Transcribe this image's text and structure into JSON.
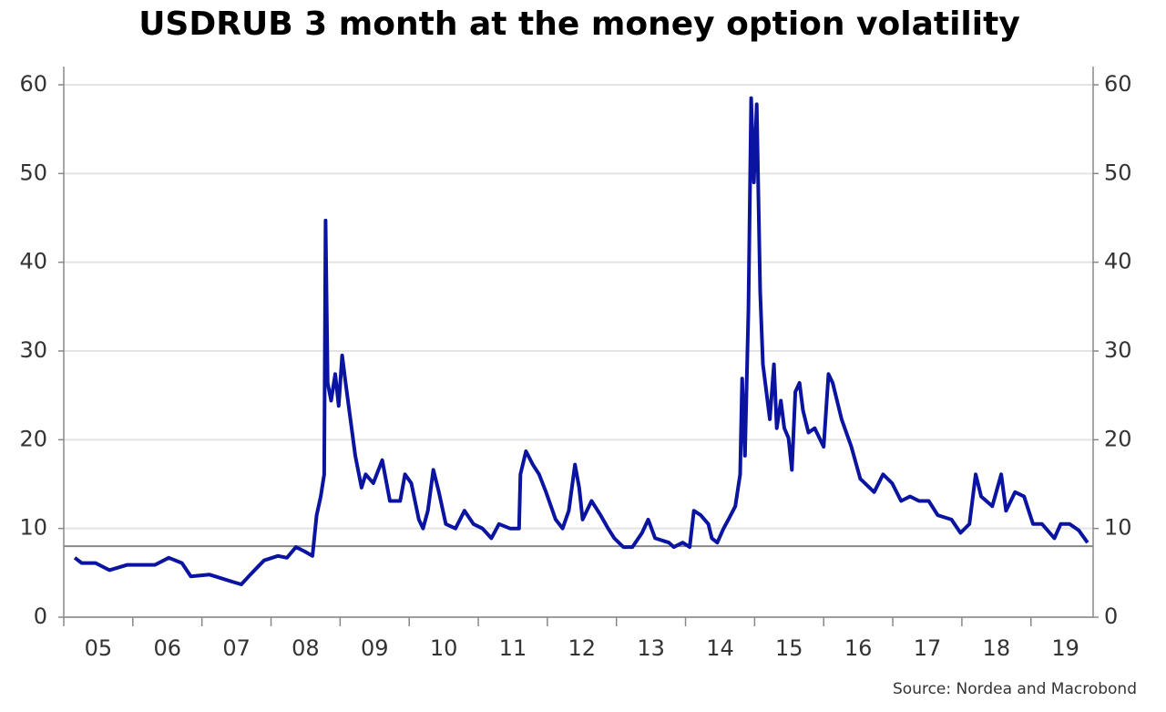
{
  "chart_data": {
    "type": "line",
    "title": "USDRUB 3 month at the money option volatility",
    "source": "Source: Nordea and Macrobond",
    "x": [
      5.16,
      5.26,
      5.46,
      5.66,
      5.92,
      6.32,
      6.52,
      6.71,
      6.84,
      7.11,
      7.44,
      7.57,
      7.7,
      7.9,
      8.1,
      8.23,
      8.36,
      8.49,
      8.6,
      8.66,
      8.72,
      8.77,
      8.79,
      8.82,
      8.87,
      8.93,
      8.98,
      9.03,
      9.08,
      9.15,
      9.22,
      9.31,
      9.37,
      9.48,
      9.61,
      9.72,
      9.87,
      9.94,
      10.03,
      10.14,
      10.2,
      10.27,
      10.35,
      10.43,
      10.53,
      10.67,
      10.8,
      10.93,
      11.06,
      11.19,
      11.3,
      11.46,
      11.59,
      11.61,
      11.69,
      11.79,
      11.88,
      11.98,
      12.12,
      12.22,
      12.31,
      12.4,
      12.46,
      12.51,
      12.64,
      12.77,
      12.88,
      12.97,
      13.1,
      13.23,
      13.37,
      13.46,
      13.56,
      13.76,
      13.83,
      13.96,
      14.06,
      14.12,
      14.22,
      14.33,
      14.38,
      14.46,
      14.55,
      14.62,
      14.72,
      14.79,
      14.82,
      14.86,
      14.91,
      14.95,
      14.99,
      15.03,
      15.08,
      15.12,
      15.17,
      15.22,
      15.28,
      15.32,
      15.38,
      15.43,
      15.49,
      15.54,
      15.59,
      15.65,
      15.7,
      15.78,
      15.87,
      16.0,
      16.07,
      16.13,
      16.26,
      16.4,
      16.53,
      16.73,
      16.86,
      16.99,
      17.12,
      17.25,
      17.38,
      17.52,
      17.65,
      17.85,
      17.98,
      18.11,
      18.2,
      18.28,
      18.44,
      18.57,
      18.64,
      18.77,
      18.9,
      19.03,
      19.16,
      19.34,
      19.43,
      19.56,
      19.69,
      19.82
    ],
    "series": [
      {
        "name": "USDRUB 3M ATM volatility",
        "color": "#0a14a0",
        "values": [
          6.7,
          6.1,
          6.1,
          5.3,
          5.9,
          5.9,
          6.7,
          6.1,
          4.6,
          4.8,
          4.0,
          3.7,
          4.8,
          6.4,
          6.9,
          6.7,
          7.9,
          7.4,
          6.9,
          11.5,
          13.6,
          16.1,
          44.7,
          26.4,
          24.4,
          27.4,
          23.8,
          29.5,
          26.4,
          22.3,
          18.2,
          14.6,
          16.1,
          15.1,
          17.7,
          13.1,
          13.1,
          16.1,
          15.1,
          11.0,
          10.0,
          12.0,
          16.6,
          14.1,
          10.5,
          10.0,
          12.0,
          10.5,
          10.0,
          8.9,
          10.5,
          10.0,
          10.0,
          16.1,
          18.7,
          17.2,
          16.1,
          14.1,
          11.0,
          10.0,
          12.0,
          17.2,
          14.6,
          11.0,
          13.1,
          11.5,
          10.0,
          8.9,
          7.9,
          7.9,
          9.5,
          11.0,
          8.9,
          8.4,
          7.9,
          8.4,
          7.9,
          12.0,
          11.5,
          10.5,
          8.9,
          8.4,
          10.0,
          11.0,
          12.5,
          16.1,
          26.9,
          18.2,
          34.6,
          58.5,
          49.0,
          57.8,
          36.7,
          28.5,
          25.4,
          22.3,
          28.5,
          21.3,
          24.4,
          21.3,
          20.2,
          16.6,
          25.4,
          26.4,
          23.3,
          20.8,
          21.3,
          19.2,
          27.4,
          26.4,
          22.3,
          19.2,
          15.6,
          14.1,
          16.1,
          15.1,
          13.1,
          13.6,
          13.1,
          13.1,
          11.5,
          11.0,
          9.5,
          10.5,
          16.1,
          13.6,
          12.5,
          16.1,
          12.0,
          14.1,
          13.6,
          10.5,
          10.5,
          8.9,
          10.5,
          10.5,
          9.8,
          8.4
        ]
      }
    ],
    "reference_line": 8,
    "xlim": [
      5,
      19.9
    ],
    "xticks": [
      {
        "value": 5.5,
        "label": "05"
      },
      {
        "value": 6.5,
        "label": "06"
      },
      {
        "value": 7.5,
        "label": "07"
      },
      {
        "value": 8.5,
        "label": "08"
      },
      {
        "value": 9.5,
        "label": "09"
      },
      {
        "value": 10.5,
        "label": "10"
      },
      {
        "value": 11.5,
        "label": "11"
      },
      {
        "value": 12.5,
        "label": "12"
      },
      {
        "value": 13.5,
        "label": "13"
      },
      {
        "value": 14.5,
        "label": "14"
      },
      {
        "value": 15.5,
        "label": "15"
      },
      {
        "value": 16.5,
        "label": "16"
      },
      {
        "value": 17.5,
        "label": "17"
      },
      {
        "value": 18.5,
        "label": "18"
      },
      {
        "value": 19.5,
        "label": "19"
      }
    ],
    "ylim": [
      0,
      60
    ],
    "yticks": [
      0,
      10,
      20,
      30,
      40,
      50,
      60
    ],
    "y2lim": [
      0,
      60
    ],
    "y2ticks": [
      0,
      10,
      20,
      30,
      40,
      50,
      60
    ],
    "grid": true
  }
}
